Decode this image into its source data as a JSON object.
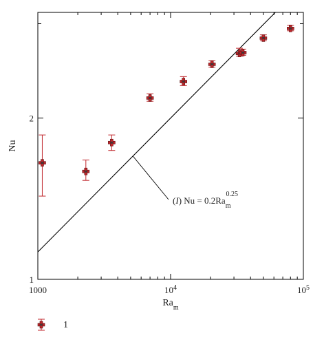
{
  "chart_data": {
    "type": "scatter",
    "xscale": "log",
    "yscale": "log",
    "xlabel": "Ra",
    "xlabel_sub": "m",
    "ylabel": "Nu",
    "xlim": [
      1000,
      100000
    ],
    "ylim": [
      1,
      3.15
    ],
    "x_ticks": [
      {
        "value": 1000,
        "base": "1000",
        "exp": ""
      },
      {
        "value": 10000,
        "base": "10",
        "exp": "4"
      },
      {
        "value": 100000,
        "base": "10",
        "exp": "5"
      }
    ],
    "y_ticks": [
      {
        "value": 1,
        "label": "1"
      },
      {
        "value": 2,
        "label": "2"
      }
    ],
    "y_minor_ticks": [
      3
    ],
    "grid": false,
    "series": [
      {
        "name": "1",
        "marker_color": "#c0262b",
        "errorbar_color": "#c0262b",
        "points": [
          {
            "x": 1080,
            "y": 1.65,
            "err_low": 1.43,
            "err_high": 1.86
          },
          {
            "x": 2300,
            "y": 1.59,
            "err_low": 1.53,
            "err_high": 1.67
          },
          {
            "x": 3600,
            "y": 1.8,
            "err_low": 1.74,
            "err_high": 1.86
          },
          {
            "x": 7000,
            "y": 2.18,
            "err_low": 2.15,
            "err_high": 2.22
          },
          {
            "x": 12500,
            "y": 2.34,
            "err_low": 2.3,
            "err_high": 2.39
          },
          {
            "x": 20500,
            "y": 2.52,
            "err_low": 2.49,
            "err_high": 2.56
          },
          {
            "x": 33000,
            "y": 2.64,
            "err_low": 2.61,
            "err_high": 2.7
          },
          {
            "x": 35000,
            "y": 2.65,
            "err_low": 2.62,
            "err_high": 2.69
          },
          {
            "x": 50000,
            "y": 2.82,
            "err_low": 2.79,
            "err_high": 2.86
          },
          {
            "x": 80000,
            "y": 2.94,
            "err_low": 2.91,
            "err_high": 2.98
          }
        ]
      }
    ],
    "fit_line": {
      "coef": 0.2,
      "exponent": 0.25,
      "color": "#000000",
      "label_prefix": "(",
      "label_italic": "I",
      "label_mid": ") Nu = 0.2Ra",
      "label_sub": "m",
      "label_sup": "0.25",
      "anchor_x": 5200
    },
    "legend": {
      "placement": "bottom-left",
      "entries": [
        {
          "label": "1",
          "marker_color": "#c0262b"
        }
      ]
    }
  }
}
